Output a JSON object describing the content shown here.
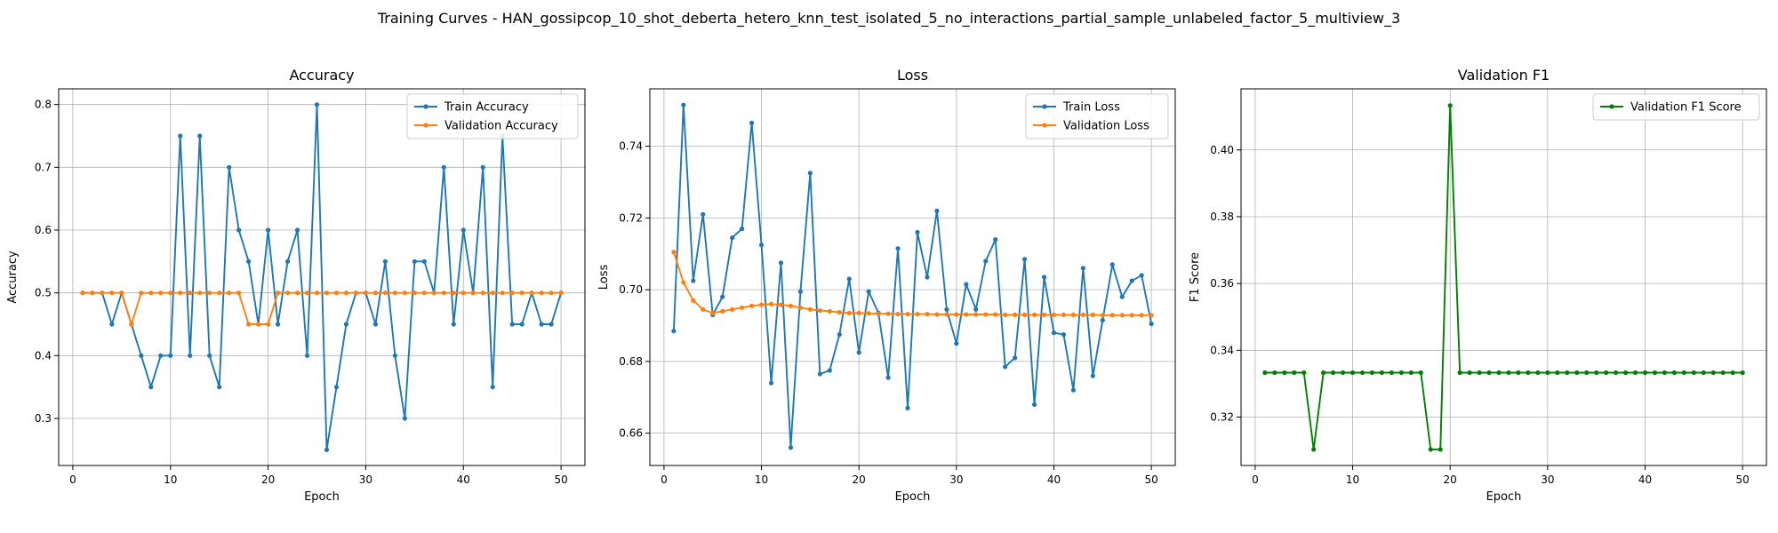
{
  "figure": {
    "suptitle": "Training Curves - HAN_gossipcop_10_shot_deberta_hetero_knn_test_isolated_5_no_interactions_partial_sample_unlabeled_factor_5_multiview_3"
  },
  "colors": {
    "blue": "#1f77b4",
    "orange": "#ff7f0e",
    "green": "#008000",
    "grid": "#b0b0b0"
  },
  "chart_data": [
    {
      "type": "line",
      "title": "Accuracy",
      "xlabel": "Epoch",
      "ylabel": "Accuracy",
      "xlim": [
        -1.45,
        52.45
      ],
      "ylim": [
        0.225,
        0.825
      ],
      "xticks": [
        0,
        10,
        20,
        30,
        40,
        50
      ],
      "yticks": [
        0.3,
        0.4,
        0.5,
        0.6,
        0.7,
        0.8
      ],
      "yprecision": 1,
      "grid": true,
      "legend": "top-right",
      "x": [
        1,
        2,
        3,
        4,
        5,
        6,
        7,
        8,
        9,
        10,
        11,
        12,
        13,
        14,
        15,
        16,
        17,
        18,
        19,
        20,
        21,
        22,
        23,
        24,
        25,
        26,
        27,
        28,
        29,
        30,
        31,
        32,
        33,
        34,
        35,
        36,
        37,
        38,
        39,
        40,
        41,
        42,
        43,
        44,
        45,
        46,
        47,
        48,
        49,
        50
      ],
      "series": [
        {
          "name": "Train Accuracy",
          "color": "#1f77b4",
          "values": [
            0.5,
            0.5,
            0.5,
            0.45,
            0.5,
            0.45,
            0.4,
            0.35,
            0.4,
            0.4,
            0.75,
            0.4,
            0.75,
            0.4,
            0.35,
            0.7,
            0.6,
            0.55,
            0.45,
            0.6,
            0.45,
            0.55,
            0.6,
            0.4,
            0.8,
            0.25,
            0.35,
            0.45,
            0.5,
            0.5,
            0.45,
            0.55,
            0.4,
            0.3,
            0.55,
            0.55,
            0.5,
            0.7,
            0.45,
            0.6,
            0.5,
            0.7,
            0.35,
            0.75,
            0.45,
            0.45,
            0.5,
            0.45,
            0.45,
            0.5
          ]
        },
        {
          "name": "Validation Accuracy",
          "color": "#ff7f0e",
          "values": [
            0.5,
            0.5,
            0.5,
            0.5,
            0.5,
            0.45,
            0.5,
            0.5,
            0.5,
            0.5,
            0.5,
            0.5,
            0.5,
            0.5,
            0.5,
            0.5,
            0.5,
            0.45,
            0.45,
            0.45,
            0.5,
            0.5,
            0.5,
            0.5,
            0.5,
            0.5,
            0.5,
            0.5,
            0.5,
            0.5,
            0.5,
            0.5,
            0.5,
            0.5,
            0.5,
            0.5,
            0.5,
            0.5,
            0.5,
            0.5,
            0.5,
            0.5,
            0.5,
            0.5,
            0.5,
            0.5,
            0.5,
            0.5,
            0.5,
            0.5
          ]
        }
      ]
    },
    {
      "type": "line",
      "title": "Loss",
      "xlabel": "Epoch",
      "ylabel": "Loss",
      "xlim": [
        -1.45,
        52.45
      ],
      "ylim": [
        0.651,
        0.756
      ],
      "xticks": [
        0,
        10,
        20,
        30,
        40,
        50
      ],
      "yticks": [
        0.66,
        0.68,
        0.7,
        0.72,
        0.74
      ],
      "yprecision": 2,
      "grid": true,
      "legend": "top-right",
      "x": [
        1,
        2,
        3,
        4,
        5,
        6,
        7,
        8,
        9,
        10,
        11,
        12,
        13,
        14,
        15,
        16,
        17,
        18,
        19,
        20,
        21,
        22,
        23,
        24,
        25,
        26,
        27,
        28,
        29,
        30,
        31,
        32,
        33,
        34,
        35,
        36,
        37,
        38,
        39,
        40,
        41,
        42,
        43,
        44,
        45,
        46,
        47,
        48,
        49,
        50
      ],
      "series": [
        {
          "name": "Train Loss",
          "color": "#1f77b4",
          "values": [
            0.6885,
            0.7515,
            0.7025,
            0.721,
            0.693,
            0.698,
            0.7145,
            0.717,
            0.7465,
            0.7125,
            0.674,
            0.7075,
            0.656,
            0.6995,
            0.7325,
            0.6765,
            0.6775,
            0.6875,
            0.703,
            0.6825,
            0.6995,
            0.6935,
            0.6755,
            0.7115,
            0.667,
            0.716,
            0.7035,
            0.722,
            0.6945,
            0.685,
            0.7015,
            0.6945,
            0.708,
            0.714,
            0.6785,
            0.681,
            0.7085,
            0.668,
            0.7035,
            0.688,
            0.6875,
            0.672,
            0.706,
            0.676,
            0.6915,
            0.707,
            0.698,
            0.7025,
            0.704,
            0.6905
          ]
        },
        {
          "name": "Validation Loss",
          "color": "#ff7f0e",
          "values": [
            0.7105,
            0.702,
            0.697,
            0.6945,
            0.6935,
            0.694,
            0.6945,
            0.695,
            0.6955,
            0.6958,
            0.696,
            0.6958,
            0.6955,
            0.695,
            0.6945,
            0.6942,
            0.694,
            0.6937,
            0.6935,
            0.6935,
            0.6934,
            0.6933,
            0.6933,
            0.6932,
            0.6932,
            0.6932,
            0.6932,
            0.6931,
            0.6931,
            0.6931,
            0.6931,
            0.6931,
            0.6931,
            0.6931,
            0.693,
            0.693,
            0.693,
            0.693,
            0.693,
            0.693,
            0.693,
            0.693,
            0.693,
            0.693,
            0.6929,
            0.6929,
            0.6929,
            0.6929,
            0.6929,
            0.6929
          ]
        }
      ]
    },
    {
      "type": "line",
      "title": "Validation F1",
      "xlabel": "Epoch",
      "ylabel": "F1 Score",
      "xlim": [
        -1.45,
        52.45
      ],
      "ylim": [
        0.3055,
        0.4183
      ],
      "xticks": [
        0,
        10,
        20,
        30,
        40,
        50
      ],
      "yticks": [
        0.32,
        0.34,
        0.36,
        0.38,
        0.4
      ],
      "yprecision": 2,
      "grid": true,
      "legend": "top-right",
      "x": [
        1,
        2,
        3,
        4,
        5,
        6,
        7,
        8,
        9,
        10,
        11,
        12,
        13,
        14,
        15,
        16,
        17,
        18,
        19,
        20,
        21,
        22,
        23,
        24,
        25,
        26,
        27,
        28,
        29,
        30,
        31,
        32,
        33,
        34,
        35,
        36,
        37,
        38,
        39,
        40,
        41,
        42,
        43,
        44,
        45,
        46,
        47,
        48,
        49,
        50
      ],
      "series": [
        {
          "name": "Validation F1 Score",
          "color": "#008000",
          "values": [
            0.3333,
            0.3333,
            0.3333,
            0.3333,
            0.3333,
            0.3103,
            0.3333,
            0.3333,
            0.3333,
            0.3333,
            0.3333,
            0.3333,
            0.3333,
            0.3333,
            0.3333,
            0.3333,
            0.3333,
            0.3103,
            0.3103,
            0.4133,
            0.3333,
            0.3333,
            0.3333,
            0.3333,
            0.3333,
            0.3333,
            0.3333,
            0.3333,
            0.3333,
            0.3333,
            0.3333,
            0.3333,
            0.3333,
            0.3333,
            0.3333,
            0.3333,
            0.3333,
            0.3333,
            0.3333,
            0.3333,
            0.3333,
            0.3333,
            0.3333,
            0.3333,
            0.3333,
            0.3333,
            0.3333,
            0.3333,
            0.3333,
            0.3333
          ]
        }
      ]
    }
  ]
}
